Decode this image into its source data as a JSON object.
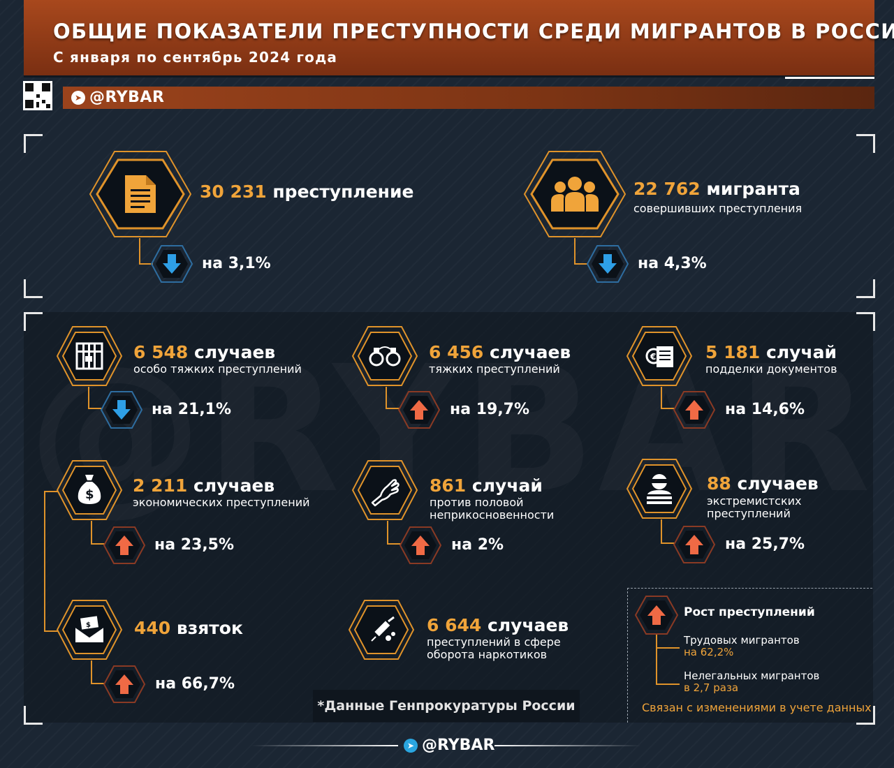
{
  "header": {
    "title": "ОБЩИЕ ПОКАЗАТЕЛИ ПРЕСТУПНОСТИ СРЕДИ МИГРАНТОВ В РОССИИ*",
    "subtitle": "С января по сентябрь 2024 года"
  },
  "brand": {
    "handle": "@RYBAR"
  },
  "watermark": "@RYBAR",
  "colors": {
    "accent": "#f0a43a",
    "header": "#a8481d",
    "down": "#2e9fe6",
    "up": "#f06a45",
    "background": "#1b2633"
  },
  "top_stats": [
    {
      "value": "30 231",
      "label": "преступление",
      "sublabel": "",
      "icon": "document-icon",
      "direction": "down",
      "change": "на 3,1%"
    },
    {
      "value": "22 762",
      "label": "мигранта",
      "sublabel": "совершивших преступления",
      "icon": "people-group-icon",
      "direction": "down",
      "change": "на 4,3%"
    }
  ],
  "stats": [
    {
      "value": "6 548",
      "unit": "случаев",
      "desc": "особо тяжких преступлений",
      "icon": "prison-bars-icon",
      "direction": "down",
      "change": "на 21,1%"
    },
    {
      "value": "6 456",
      "unit": "случаев",
      "desc": "тяжких преступлений",
      "icon": "handcuffs-icon",
      "direction": "up",
      "change": "на 19,7%"
    },
    {
      "value": "5 181",
      "unit": "случай",
      "desc": "подделки документов",
      "icon": "forged-document-icon",
      "direction": "up",
      "change": "на 14,6%"
    },
    {
      "value": "2 211",
      "unit": "случаев",
      "desc": "экономических преступлений",
      "icon": "money-bag-icon",
      "direction": "up",
      "change": "на 23,5%"
    },
    {
      "value": "861",
      "unit": "случай",
      "desc": "против половой неприкосновенности",
      "icon": "grabbing-hand-icon",
      "direction": "up",
      "change": "на 2%"
    },
    {
      "value": "88",
      "unit": "случаев",
      "desc": "экстремистских преступлений",
      "icon": "masked-person-icon",
      "direction": "up",
      "change": "на 25,7%"
    },
    {
      "value": "440",
      "unit": "взяток",
      "desc": "",
      "icon": "bribe-envelope-icon",
      "direction": "up",
      "change": "на 66,7%"
    },
    {
      "value": "6 644",
      "unit": "случаев",
      "desc": "преступлений в сфере оборота наркотиков",
      "icon": "syringe-icon",
      "direction": "none",
      "change": ""
    }
  ],
  "legend": {
    "title": "Рост преступлений",
    "rows": [
      {
        "label": "Трудовых мигрантов",
        "value": "на 62,2%"
      },
      {
        "label": "Нелегальных мигрантов",
        "value": "в 2,7 раза"
      }
    ],
    "note": "Связан с изменениями в учете данных"
  },
  "source": "*Данные Генпрокуратуры России"
}
